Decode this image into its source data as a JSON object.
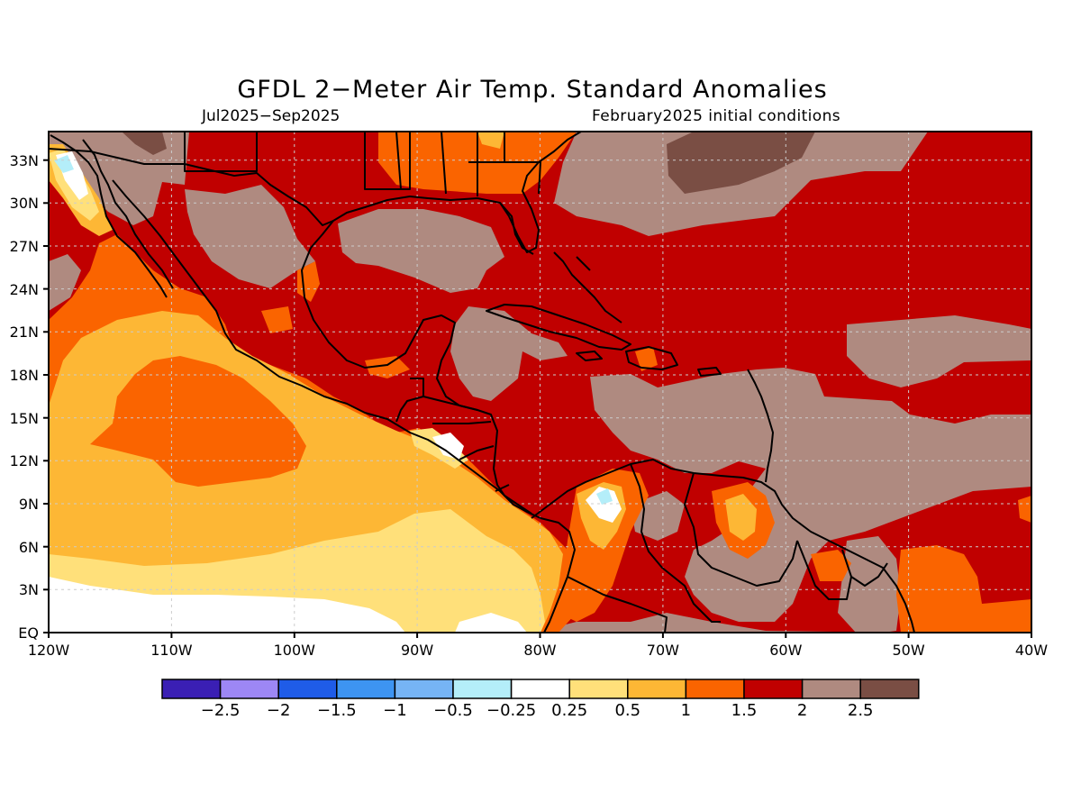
{
  "title": "GFDL 2−Meter Air Temp. Standard Anomalies",
  "period": "Jul2025−Sep2025",
  "init": "February2025 initial conditions",
  "axes": {
    "lat_labels": [
      "EQ",
      "3N",
      "6N",
      "9N",
      "12N",
      "15N",
      "18N",
      "21N",
      "24N",
      "27N",
      "30N",
      "33N"
    ],
    "lon_labels": [
      "120W",
      "110W",
      "100W",
      "90W",
      "80W",
      "70W",
      "60W",
      "50W",
      "40W"
    ],
    "lat_range": [
      0,
      35
    ],
    "lon_range": [
      -120,
      -40
    ],
    "grid": true
  },
  "colorbar": {
    "colors": [
      "#3a1fb4",
      "#9d87f5",
      "#1f5ce8",
      "#3d94f2",
      "#76b4f5",
      "#b4eef9",
      "#ffffff",
      "#ffe07a",
      "#fdb735",
      "#fa6400",
      "#c00000",
      "#af8a80",
      "#7a4e44"
    ],
    "labels": [
      "−2.5",
      "−2",
      "−1.5",
      "−1",
      "−0.5",
      "−0.25",
      "0.25",
      "0.5",
      "1",
      "1.5",
      "2",
      "2.5"
    ]
  },
  "colors": {
    "anom_0_25_0_5": "#ffe07a",
    "anom_0_5_1": "#fdb735",
    "anom_1_1_5": "#fa6400",
    "anom_1_5_2": "#c00000",
    "anom_2_2_5": "#af8a80",
    "anom_gt_2_5": "#7a4e44",
    "anom_near_zero": "#ffffff",
    "anom_neg_0_25_0_5": "#b4eef9"
  }
}
